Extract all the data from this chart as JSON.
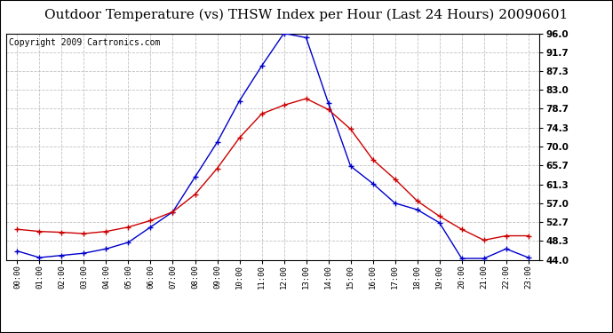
{
  "title": "Outdoor Temperature (vs) THSW Index per Hour (Last 24 Hours) 20090601",
  "copyright": "Copyright 2009 Cartronics.com",
  "hours": [
    "00:00",
    "01:00",
    "02:00",
    "03:00",
    "04:00",
    "05:00",
    "06:00",
    "07:00",
    "08:00",
    "09:00",
    "10:00",
    "11:00",
    "12:00",
    "13:00",
    "14:00",
    "15:00",
    "16:00",
    "17:00",
    "18:00",
    "19:00",
    "20:00",
    "21:00",
    "22:00",
    "23:00"
  ],
  "temp_red": [
    51.0,
    50.5,
    50.3,
    50.0,
    50.5,
    51.5,
    53.0,
    55.0,
    59.0,
    65.0,
    72.0,
    77.5,
    79.5,
    81.0,
    78.5,
    74.0,
    67.0,
    62.5,
    57.5,
    54.0,
    51.0,
    48.5,
    49.5,
    49.5
  ],
  "thsw_blue": [
    46.0,
    44.5,
    45.0,
    45.5,
    46.5,
    48.0,
    51.5,
    55.0,
    63.0,
    71.0,
    80.5,
    88.5,
    96.0,
    95.0,
    80.0,
    65.5,
    61.5,
    57.0,
    55.5,
    52.5,
    44.3,
    44.3,
    46.5,
    44.5
  ],
  "ylim_min": 44.0,
  "ylim_max": 96.0,
  "yticks": [
    44.0,
    48.3,
    52.7,
    57.0,
    61.3,
    65.7,
    70.0,
    74.3,
    78.7,
    83.0,
    87.3,
    91.7,
    96.0
  ],
  "bg_color": "#ffffff",
  "plot_bg": "#ffffff",
  "grid_color": "#bbbbbb",
  "red_color": "#cc0000",
  "blue_color": "#0000cc",
  "title_fontsize": 11,
  "copyright_fontsize": 7
}
